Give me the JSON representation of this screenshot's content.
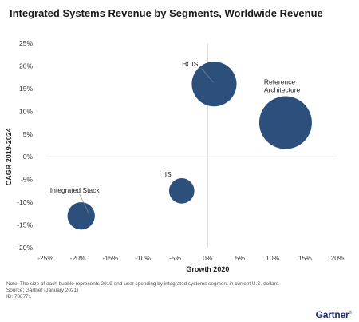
{
  "header": {
    "title": "Integrated Systems Revenue by Segments, Worldwide Revenue"
  },
  "chart_data": {
    "type": "bubble",
    "title": "Integrated Systems Revenue by Segments, Worldwide Revenue",
    "xlabel": "Growth 2020",
    "ylabel": "CAGR 2019-2024",
    "xlim": [
      -25,
      20
    ],
    "ylim": [
      -20,
      25
    ],
    "x_ticks": [
      "-25%",
      "-20%",
      "-15%",
      "-10%",
      "-5%",
      "0%",
      "5%",
      "10%",
      "15%",
      "20%"
    ],
    "y_ticks": [
      "25%",
      "20%",
      "15%",
      "10%",
      "5%",
      "0%",
      "-5%",
      "-10%",
      "-15%",
      "-20%"
    ],
    "bubble_color": "#2d4f7c",
    "grid": false,
    "points": [
      {
        "label": "HCIS",
        "x": 1,
        "y": 16,
        "size": 0.85
      },
      {
        "label": "Reference Architecture",
        "x": 12,
        "y": 7.5,
        "size": 1.0
      },
      {
        "label": "IIS",
        "x": -4,
        "y": -7.5,
        "size": 0.48
      },
      {
        "label": "Integrated Stack",
        "x": -19.5,
        "y": -13,
        "size": 0.52
      }
    ]
  },
  "footer": {
    "note": "Note: The size of each bubble represents 2019 end-user spending by integrated systems segment in current U.S. dollars.",
    "source": "Source: Gartner (January 2021)",
    "id": "ID: 738771",
    "logo": "Gartner"
  }
}
